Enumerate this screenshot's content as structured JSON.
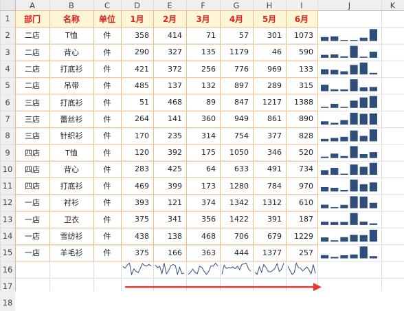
{
  "columns": [
    "A",
    "B",
    "C",
    "D",
    "E",
    "F",
    "G",
    "H",
    "I",
    "J",
    "K"
  ],
  "row_numbers": [
    "1",
    "2",
    "3",
    "4",
    "5",
    "6",
    "7",
    "8",
    "9",
    "10",
    "11",
    "12",
    "13",
    "14",
    "15",
    "16",
    "17",
    "18"
  ],
  "header": [
    "部门",
    "名称",
    "单位",
    "1月",
    "2月",
    "3月",
    "4月",
    "5月",
    "6月"
  ],
  "rows": [
    [
      "二店",
      "T恤",
      "件",
      "358",
      "414",
      "71",
      "57",
      "301",
      "1073"
    ],
    [
      "二店",
      "背心",
      "件",
      "290",
      "327",
      "135",
      "1179",
      "46",
      "590"
    ],
    [
      "二店",
      "打底衫",
      "件",
      "421",
      "372",
      "256",
      "776",
      "969",
      "133"
    ],
    [
      "二店",
      "吊带",
      "件",
      "485",
      "137",
      "132",
      "897",
      "289",
      "315"
    ],
    [
      "三店",
      "打底衫",
      "件",
      "51",
      "468",
      "89",
      "847",
      "1217",
      "1388"
    ],
    [
      "三店",
      "蕾丝衫",
      "件",
      "264",
      "141",
      "360",
      "949",
      "861",
      "890"
    ],
    [
      "三店",
      "针织衫",
      "件",
      "170",
      "235",
      "314",
      "754",
      "377",
      "828"
    ],
    [
      "四店",
      "T恤",
      "件",
      "120",
      "392",
      "175",
      "1050",
      "346",
      "520"
    ],
    [
      "四店",
      "背心",
      "件",
      "283",
      "425",
      "64",
      "633",
      "491",
      "734"
    ],
    [
      "四店",
      "打底衫",
      "件",
      "469",
      "399",
      "173",
      "1280",
      "784",
      "970"
    ],
    [
      "一店",
      "衬衫",
      "件",
      "393",
      "121",
      "374",
      "1342",
      "1312",
      "610"
    ],
    [
      "一店",
      "卫衣",
      "件",
      "375",
      "341",
      "356",
      "1422",
      "391",
      "187"
    ],
    [
      "一店",
      "雪纺衫",
      "件",
      "438",
      "138",
      "468",
      "706",
      "679",
      "1229"
    ],
    [
      "一店",
      "羊毛衫",
      "件",
      "375",
      "166",
      "363",
      "444",
      "1377",
      "257"
    ]
  ],
  "colors": {
    "accent_text": "#e02020",
    "header_fill": "#fdf6d4",
    "border": "#f2b98a",
    "sparkline": "#2e4f7c",
    "arrow": "#e33b32"
  }
}
